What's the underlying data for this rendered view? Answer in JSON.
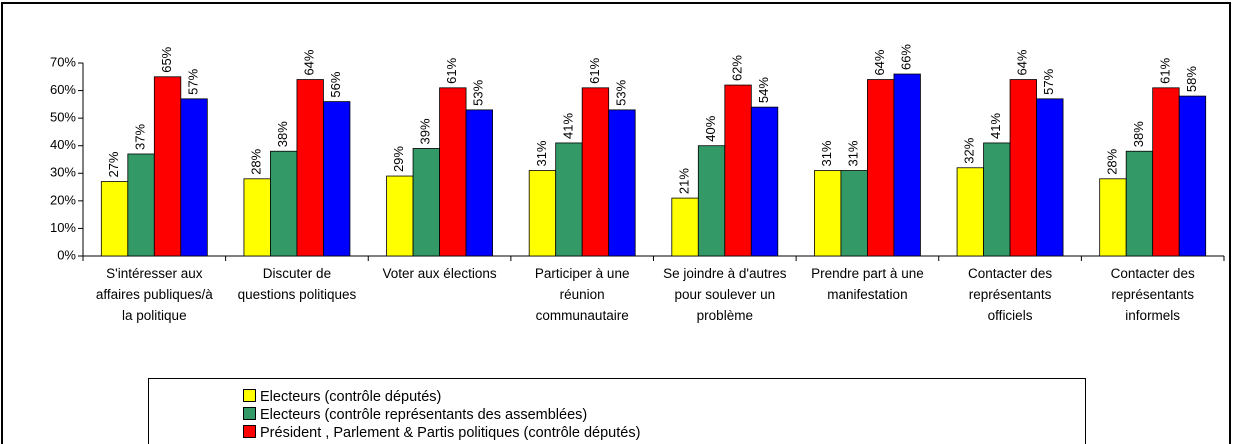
{
  "chart_data": {
    "type": "bar",
    "categories": [
      "S'intéresser aux affaires publiques/à la politique",
      "Discuter de questions politiques",
      "Voter aux élections",
      "Participer à une réunion communautaire",
      "Se joindre à d'autres pour soulever un problème",
      "Prendre part à une manifestation",
      "Contacter des représentants officiels",
      "Contacter des représentants informels"
    ],
    "series": [
      {
        "name": "Electeurs (contrôle députés)",
        "color": "#ffff00",
        "values": [
          27,
          28,
          29,
          31,
          21,
          31,
          32,
          28
        ],
        "value_labels": [
          "27%",
          "28%",
          "29%",
          "31%",
          "21%",
          "31%",
          "32%",
          "28%"
        ]
      },
      {
        "name": "Electeurs (contrôle représentants des assemblées)",
        "color": "#339966",
        "values": [
          37,
          38,
          39,
          41,
          40,
          31,
          41,
          38
        ],
        "value_labels": [
          "37%",
          "38%",
          "39%",
          "41%",
          "40%",
          "31%",
          "41%",
          "38%"
        ]
      },
      {
        "name": "Président , Parlement & Partis politiques (contrôle députés)",
        "color": "#ff0000",
        "values": [
          65,
          64,
          61,
          61,
          62,
          64,
          64,
          61
        ],
        "value_labels": [
          "65%",
          "64%",
          "61%",
          "61%",
          "62%",
          "64%",
          "64%",
          "61%"
        ]
      },
      {
        "color": "#0000ff",
        "values": [
          57,
          56,
          53,
          53,
          54,
          66,
          57,
          58
        ],
        "value_labels": [
          "57%",
          "56%",
          "53%",
          "53%",
          "54%",
          "66%",
          "57%",
          "58%"
        ]
      }
    ],
    "ylim": [
      0,
      70
    ],
    "yticks": [
      {
        "value": 0,
        "label": "0%"
      },
      {
        "value": 10,
        "label": "10%"
      },
      {
        "value": 20,
        "label": "20%"
      },
      {
        "value": 30,
        "label": "30%"
      },
      {
        "value": 40,
        "label": "40%"
      },
      {
        "value": 50,
        "label": "50%"
      },
      {
        "value": 60,
        "label": "60%"
      },
      {
        "value": 70,
        "label": "70%"
      }
    ],
    "grid": false
  }
}
